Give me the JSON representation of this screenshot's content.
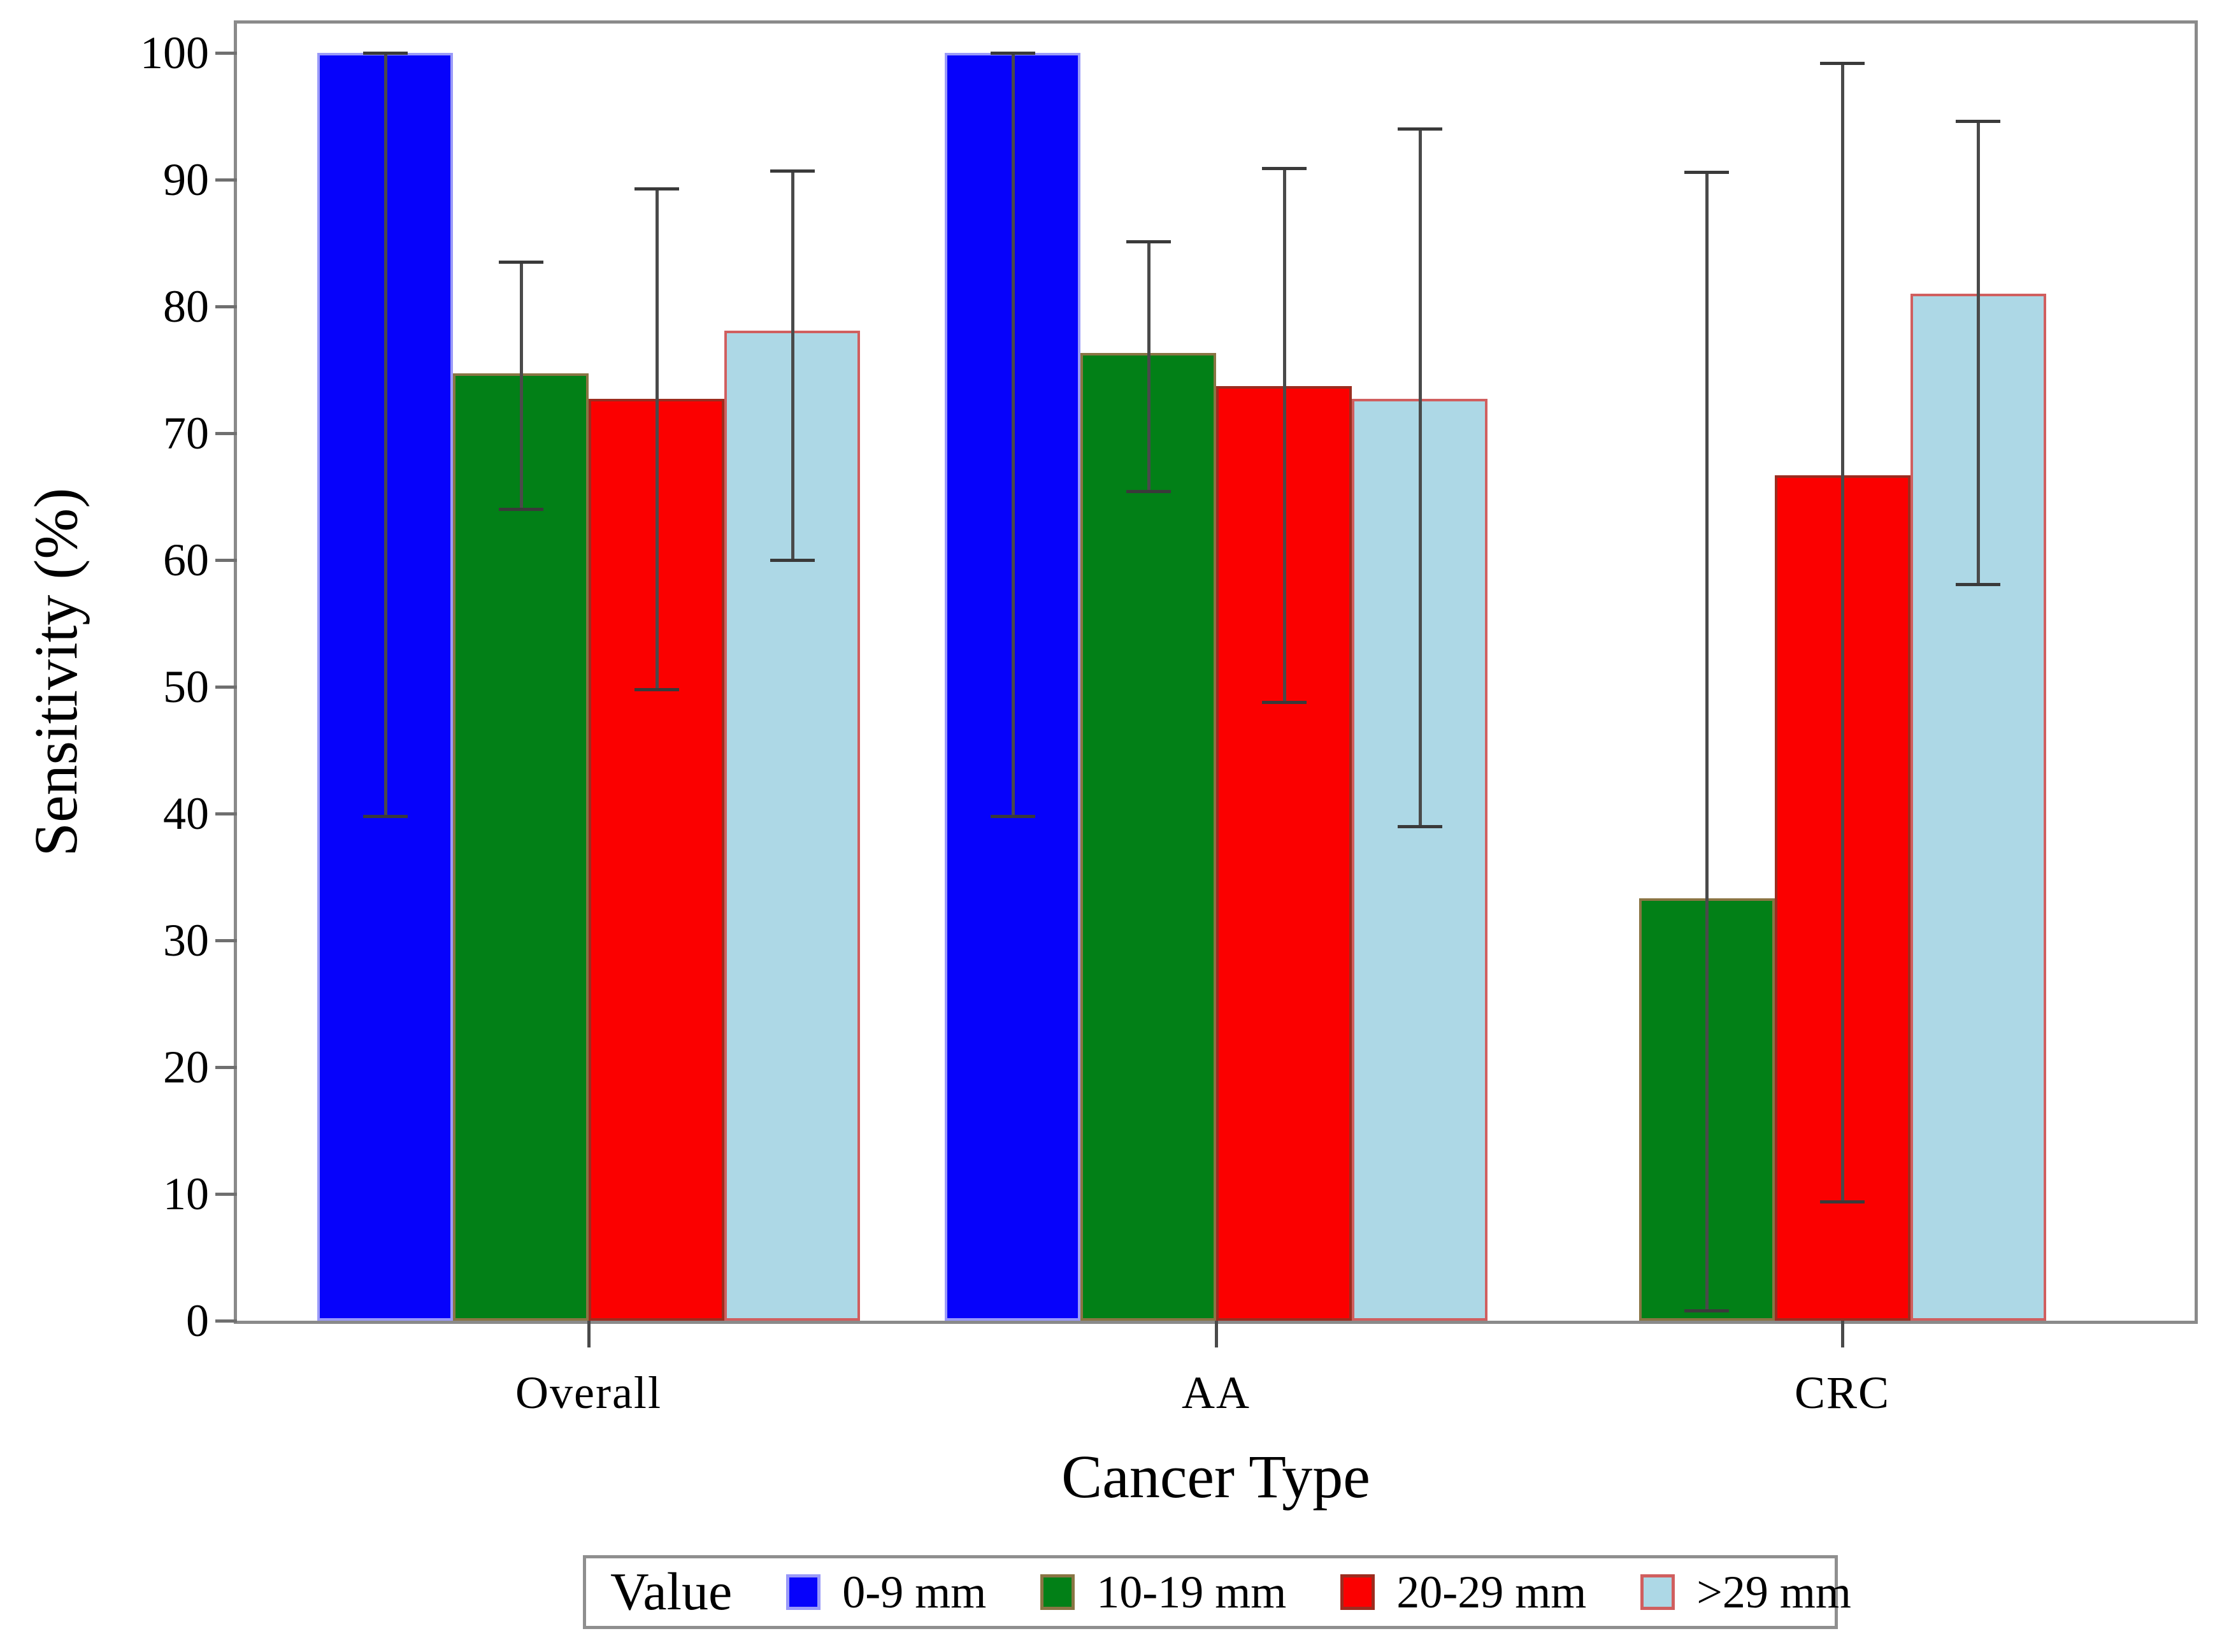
{
  "figure": {
    "background": "#ffffff",
    "frame_color": "#8a8a8a",
    "error_bar_color": "#4a4a4a",
    "y_axis": {
      "tick_labels": [
        "0",
        "10",
        "20",
        "30",
        "40",
        "50",
        "60",
        "70",
        "80",
        "90",
        "100"
      ]
    },
    "legend": {
      "title": "Value"
    }
  },
  "chart_data": {
    "type": "bar",
    "title": "",
    "xlabel": "Cancer Type",
    "ylabel": "Sensitivity (%)",
    "ylim": [
      0,
      100
    ],
    "grid": false,
    "legend_position": "bottom",
    "error_bars": "95% confidence interval whiskers drawn over bars",
    "categories": [
      "Overall",
      "AA",
      "CRC"
    ],
    "series": [
      {
        "name": "0-9 mm",
        "color": "#0602fb",
        "border": "#9a9af8",
        "values": [
          100,
          100,
          null
        ],
        "error_low": [
          39.8,
          39.8,
          null
        ],
        "error_high": [
          100,
          100,
          null
        ]
      },
      {
        "name": "10-19 mm",
        "color": "#028017",
        "border": "#8a7544",
        "values": [
          74.7,
          76.3,
          33.3
        ],
        "error_low": [
          64.0,
          65.4,
          0.8
        ],
        "error_high": [
          83.5,
          85.1,
          90.6
        ]
      },
      {
        "name": "20-29 mm",
        "color": "#fb0000",
        "border": "#9c2c1f",
        "values": [
          72.7,
          73.7,
          66.7
        ],
        "error_low": [
          49.8,
          48.8,
          9.4
        ],
        "error_high": [
          89.3,
          90.9,
          99.2
        ]
      },
      {
        "name": ">29 mm",
        "color": "#add8e6",
        "border": "#d05f5f",
        "values": [
          78.1,
          72.7,
          81.0
        ],
        "error_low": [
          60.0,
          39.0,
          58.1
        ],
        "error_high": [
          90.7,
          94.0,
          94.6
        ]
      }
    ]
  }
}
